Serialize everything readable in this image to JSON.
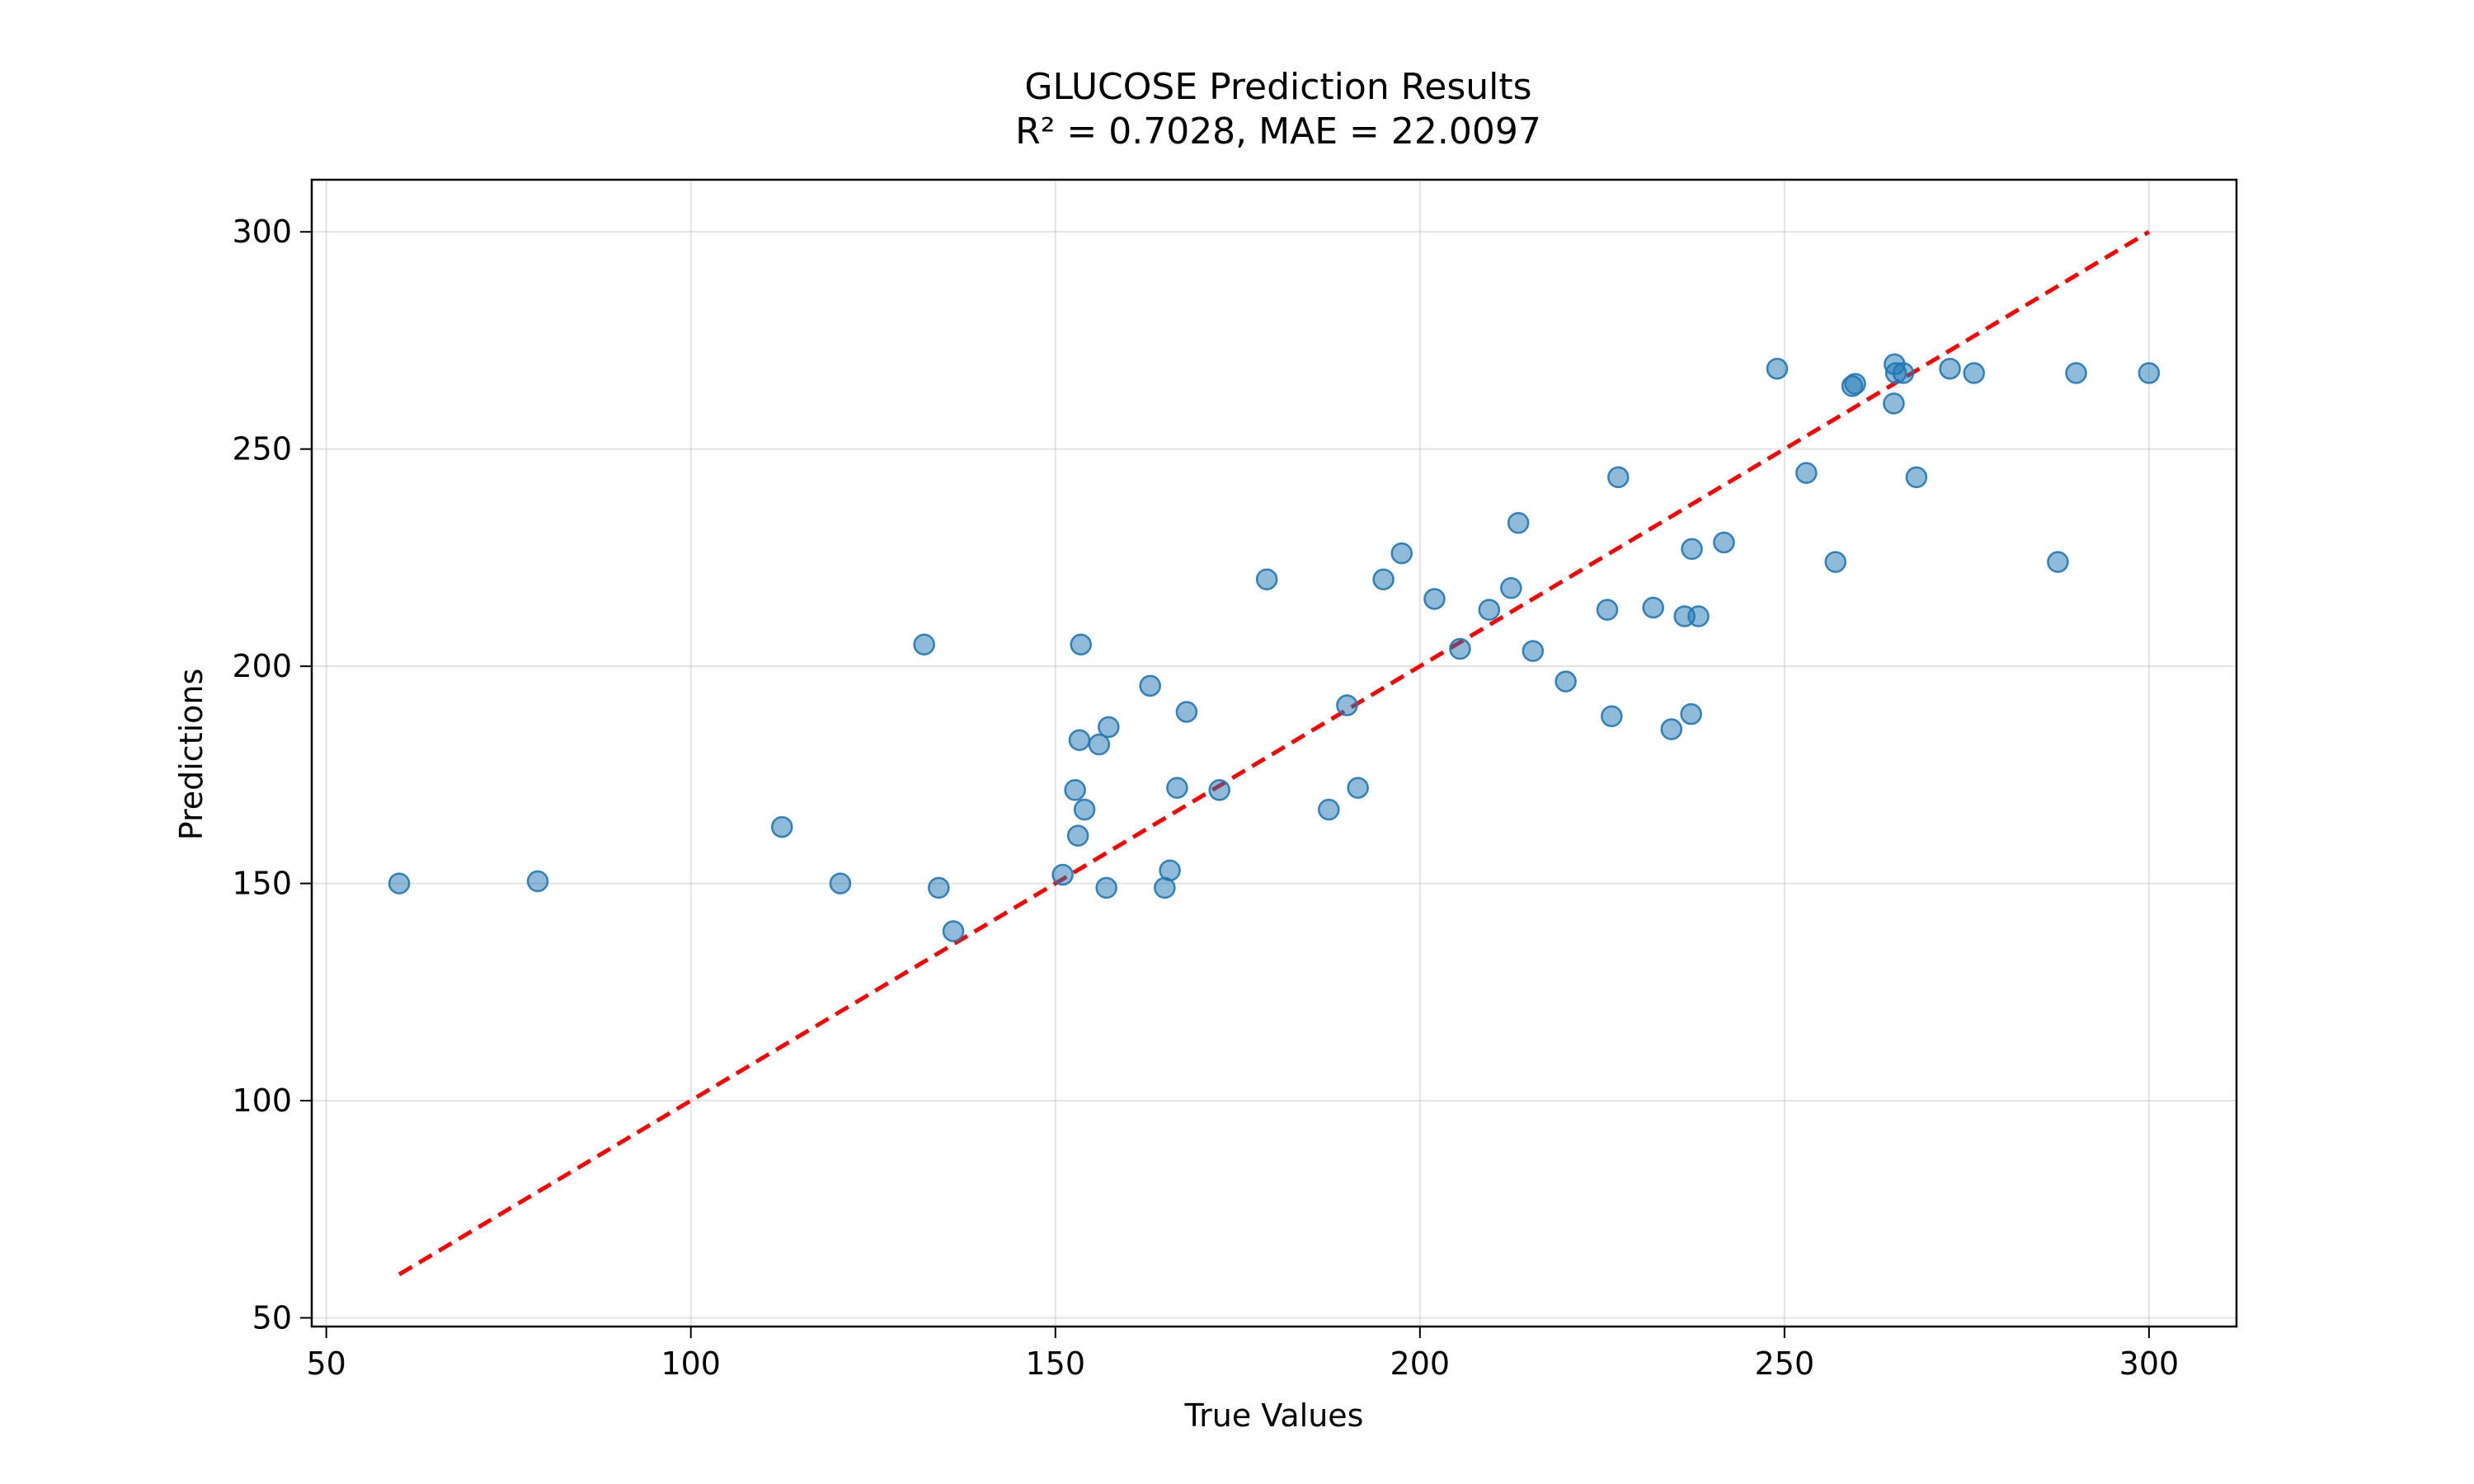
{
  "chart_data": {
    "type": "scatter",
    "title": "GLUCOSE Prediction Results",
    "subtitle": "R² = 0.7028, MAE = 22.0097",
    "xlabel": "True Values",
    "ylabel": "Predictions",
    "xlim": [
      48,
      312
    ],
    "ylim": [
      48,
      312
    ],
    "xticks": [
      50,
      100,
      150,
      200,
      250,
      300
    ],
    "yticks": [
      50,
      100,
      150,
      200,
      250,
      300
    ],
    "grid": true,
    "point_color": "#1f77b4",
    "reference_line": {
      "from": [
        60,
        60
      ],
      "to": [
        300,
        300
      ],
      "color": "#ff0000",
      "style": "dashed"
    },
    "points": [
      [
        60,
        150
      ],
      [
        79,
        150.5
      ],
      [
        112.5,
        163
      ],
      [
        120.5,
        150
      ],
      [
        132,
        205
      ],
      [
        134,
        149
      ],
      [
        136,
        139
      ],
      [
        151,
        152
      ],
      [
        152.7,
        171.5
      ],
      [
        153.1,
        161
      ],
      [
        153.3,
        183
      ],
      [
        153.5,
        205
      ],
      [
        154,
        167
      ],
      [
        156,
        182
      ],
      [
        157,
        149
      ],
      [
        157.3,
        186
      ],
      [
        163,
        195.5
      ],
      [
        165,
        149
      ],
      [
        165.7,
        153
      ],
      [
        166.7,
        172
      ],
      [
        168,
        189.5
      ],
      [
        172.5,
        171.5
      ],
      [
        179,
        220
      ],
      [
        187.5,
        167
      ],
      [
        190,
        191
      ],
      [
        191.5,
        172
      ],
      [
        195,
        220
      ],
      [
        197.5,
        226
      ],
      [
        202,
        215.5
      ],
      [
        205.5,
        204
      ],
      [
        209.5,
        213
      ],
      [
        212.5,
        218
      ],
      [
        213.5,
        233
      ],
      [
        215.5,
        203.5
      ],
      [
        220,
        196.5
      ],
      [
        225.7,
        213
      ],
      [
        226.3,
        188.5
      ],
      [
        227.2,
        243.5
      ],
      [
        232,
        213.5
      ],
      [
        234.5,
        185.5
      ],
      [
        236.3,
        211.5
      ],
      [
        237.2,
        189
      ],
      [
        237.3,
        227
      ],
      [
        238.2,
        211.5
      ],
      [
        241.7,
        228.5
      ],
      [
        249,
        268.5
      ],
      [
        253,
        244.5
      ],
      [
        257,
        224
      ],
      [
        259.3,
        264.5
      ],
      [
        259.7,
        265
      ],
      [
        265,
        260.5
      ],
      [
        265.1,
        269.5
      ],
      [
        265.3,
        267.5
      ],
      [
        266.3,
        267.5
      ],
      [
        268.1,
        243.5
      ],
      [
        272.7,
        268.5
      ],
      [
        276,
        267.5
      ],
      [
        287.5,
        224
      ],
      [
        290,
        267.5
      ],
      [
        300,
        267.5
      ]
    ]
  }
}
